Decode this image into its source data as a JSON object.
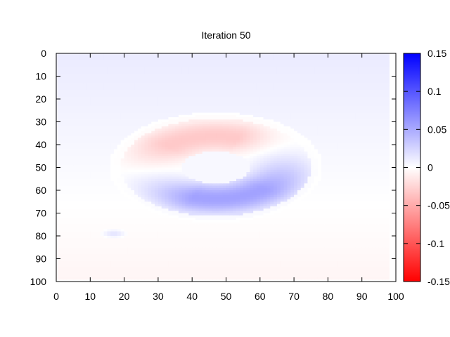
{
  "chart_data": {
    "type": "heatmap",
    "title": "Iteration 50",
    "xlabel": "",
    "ylabel": "",
    "xlim": [
      0,
      100
    ],
    "ylim": [
      0,
      100
    ],
    "y_reversed": true,
    "x_ticks": [
      0,
      10,
      20,
      30,
      40,
      50,
      60,
      70,
      80,
      90,
      100
    ],
    "y_ticks": [
      0,
      10,
      20,
      30,
      40,
      50,
      60,
      70,
      80,
      90,
      100
    ],
    "data_extent": {
      "x": [
        0,
        98
      ],
      "y": [
        0,
        99
      ]
    },
    "colorbar": {
      "range": [
        -0.15,
        0.15
      ],
      "ticks": [
        0.15,
        0.1,
        0.05,
        0,
        -0.05,
        -0.1,
        -0.15
      ],
      "tick_labels": [
        "0.15",
        "0.1",
        "0.05",
        "0",
        "-0.05",
        "-0.1",
        "-0.15"
      ],
      "color_min": "#ff0000",
      "color_mid": "#ffffff",
      "color_max": "#0000ff"
    },
    "field": {
      "background_top": 0.012,
      "background_bottom": -0.006,
      "ring": {
        "center": [
          47,
          50
        ],
        "inner_radius_x": 10,
        "inner_radius_y": 7,
        "outer_radius_x": 30,
        "outer_radius_y": 23,
        "positive_peak": 0.055,
        "negative_peak": -0.032
      },
      "spot": {
        "center": [
          17,
          79
        ],
        "value": 0.02
      }
    },
    "grid": false,
    "legend": "none"
  }
}
